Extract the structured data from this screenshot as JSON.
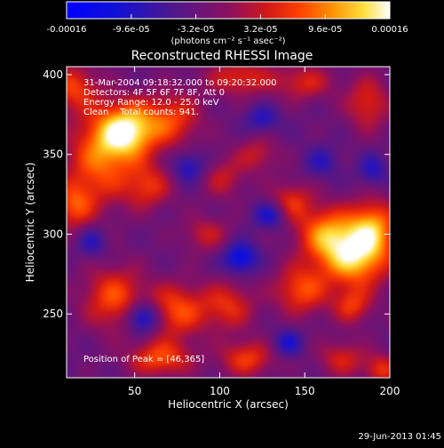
{
  "colorbar": {
    "tick_labels": [
      "-0.00016",
      "-9.6e-05",
      "-3.2e-05",
      "3.2e-05",
      "9.6e-05",
      "0.00016"
    ],
    "tick_values": [
      -0.00016,
      -9.6e-05,
      -3.2e-05,
      3.2e-05,
      9.6e-05,
      0.00016
    ],
    "range": [
      -0.00016,
      0.00016
    ],
    "units": "(photons cm⁻² s⁻¹ asec⁻²)"
  },
  "info": {
    "time_range": "31-Mar-2004 09:18:32.000 to 09:20:32.000",
    "detectors": "Detectors: 4F 5F 6F 7F 8F, Att 0",
    "energy": "Energy Range: 12.0 - 25.0 keV",
    "method": "Clean    Total counts: 941.",
    "peak": "Position of Peak = [46,365]"
  },
  "footer": {
    "date": "29-Jun-2013 01:45"
  },
  "chart_data": {
    "type": "heatmap",
    "title": "Reconstructed RHESSI Image",
    "xlabel": "Heliocentric X (arcsec)",
    "ylabel": "Heliocentric Y (arcsec)",
    "xlim": [
      10,
      200
    ],
    "ylim": [
      210,
      405
    ],
    "x_ticks": [
      50,
      100,
      150,
      200
    ],
    "y_ticks": [
      250,
      300,
      350,
      400
    ],
    "colormap": "blue-purple-red-yellow-white",
    "peak_position": [
      46,
      365
    ],
    "blobs": [
      {
        "x": 46,
        "y": 365,
        "amp": 0.00016,
        "sx": 12,
        "sy": 12
      },
      {
        "x": 30,
        "y": 348,
        "amp": 0.00011,
        "sx": 14,
        "sy": 20
      },
      {
        "x": 72,
        "y": 372,
        "amp": 9e-05,
        "sx": 12,
        "sy": 12
      },
      {
        "x": 14,
        "y": 392,
        "amp": 9e-05,
        "sx": 10,
        "sy": 10
      },
      {
        "x": 58,
        "y": 330,
        "amp": 8e-05,
        "sx": 10,
        "sy": 10
      },
      {
        "x": 112,
        "y": 398,
        "amp": 8e-05,
        "sx": 14,
        "sy": 8
      },
      {
        "x": 150,
        "y": 395,
        "amp": 7e-05,
        "sx": 12,
        "sy": 8
      },
      {
        "x": 187,
        "y": 382,
        "amp": 8e-05,
        "sx": 9,
        "sy": 12
      },
      {
        "x": 180,
        "y": 285,
        "amp": 0.00015,
        "sx": 14,
        "sy": 13
      },
      {
        "x": 163,
        "y": 300,
        "amp": 0.00012,
        "sx": 12,
        "sy": 12
      },
      {
        "x": 190,
        "y": 305,
        "amp": 0.00012,
        "sx": 10,
        "sy": 12
      },
      {
        "x": 148,
        "y": 265,
        "amp": 0.0001,
        "sx": 11,
        "sy": 11
      },
      {
        "x": 142,
        "y": 320,
        "amp": 8e-05,
        "sx": 9,
        "sy": 9
      },
      {
        "x": 178,
        "y": 255,
        "amp": 8e-05,
        "sx": 8,
        "sy": 8
      },
      {
        "x": 38,
        "y": 260,
        "amp": 0.0001,
        "sx": 13,
        "sy": 14
      },
      {
        "x": 75,
        "y": 252,
        "amp": 0.0001,
        "sx": 12,
        "sy": 12
      },
      {
        "x": 105,
        "y": 255,
        "amp": 8e-05,
        "sx": 11,
        "sy": 11
      },
      {
        "x": 65,
        "y": 222,
        "amp": 0.0001,
        "sx": 13,
        "sy": 8
      },
      {
        "x": 116,
        "y": 222,
        "amp": 9e-05,
        "sx": 11,
        "sy": 8
      },
      {
        "x": 92,
        "y": 300,
        "amp": 6e-05,
        "sx": 10,
        "sy": 8
      },
      {
        "x": 102,
        "y": 335,
        "amp": 6e-05,
        "sx": 9,
        "sy": 9
      },
      {
        "x": 14,
        "y": 318,
        "amp": 9e-05,
        "sx": 9,
        "sy": 11
      },
      {
        "x": 122,
        "y": 350,
        "amp": 6e-05,
        "sx": 9,
        "sy": 8
      },
      {
        "x": 172,
        "y": 222,
        "amp": 7e-05,
        "sx": 10,
        "sy": 8
      },
      {
        "x": 195,
        "y": 215,
        "amp": 8e-05,
        "sx": 7,
        "sy": 7
      },
      {
        "x": 55,
        "y": 248,
        "amp": -0.00012,
        "sx": 7,
        "sy": 7
      },
      {
        "x": 112,
        "y": 285,
        "amp": -0.0001,
        "sx": 7,
        "sy": 7
      },
      {
        "x": 130,
        "y": 312,
        "amp": -8e-05,
        "sx": 7,
        "sy": 6
      },
      {
        "x": 82,
        "y": 342,
        "amp": -7e-05,
        "sx": 7,
        "sy": 7
      },
      {
        "x": 140,
        "y": 232,
        "amp": -7e-05,
        "sx": 6,
        "sy": 6
      },
      {
        "x": 125,
        "y": 372,
        "amp": -6e-05,
        "sx": 7,
        "sy": 6
      },
      {
        "x": 25,
        "y": 295,
        "amp": -6e-05,
        "sx": 6,
        "sy": 7
      },
      {
        "x": 190,
        "y": 340,
        "amp": -6e-05,
        "sx": 6,
        "sy": 7
      },
      {
        "x": 160,
        "y": 345,
        "amp": -5e-05,
        "sx": 7,
        "sy": 7
      }
    ]
  }
}
